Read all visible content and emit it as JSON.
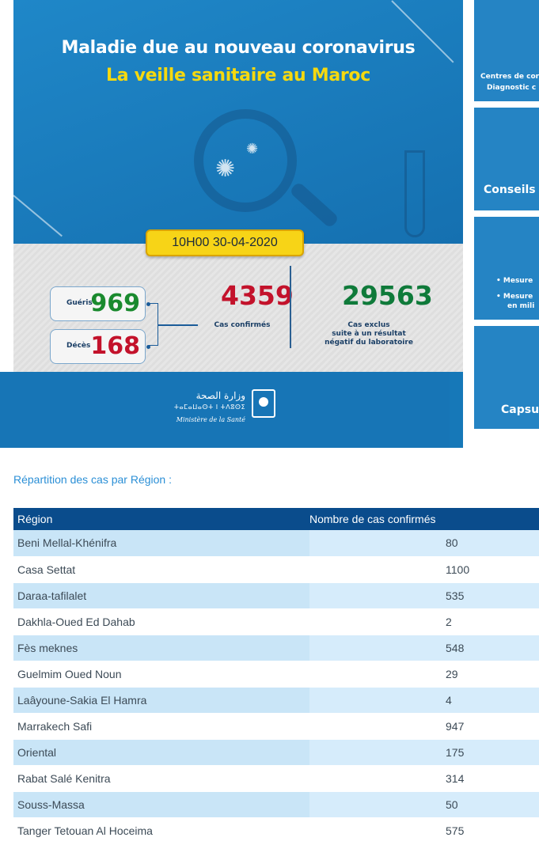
{
  "banner": {
    "title_line1": "Maladie due au nouveau coronavirus",
    "title_line2": "La veille sanitaire au Maroc",
    "datetime": "10H00  30-04-2020",
    "recovered": {
      "label": "Guéris",
      "value": "969"
    },
    "deaths": {
      "label": "Décès",
      "value": "168"
    },
    "confirmed": {
      "value": "4359",
      "label": "Cas confirmés"
    },
    "excluded": {
      "value": "29563",
      "label_line1": "Cas exclus",
      "label_line2": "suite à un résultat",
      "label_line3": "négatif du laboratoire"
    },
    "ministry": {
      "arabic": "وزارة الصحة",
      "tifinagh": "ⵜⴰⵎⴰⵡⴰⵙⵜ ⵏ ⵜⴷⵓⵙⵉ",
      "french": "Ministère de la Santé"
    },
    "colors": {
      "recovered": "#1a8a2e",
      "confirmed": "#c3122b",
      "excluded": "#0f7a3a",
      "accent": "#f7d417"
    }
  },
  "side_cards": [
    {
      "line1": "Centres de cor",
      "line2": "Diagnostic c"
    },
    {
      "line1": "Conseils"
    },
    {
      "line1": "• Mesure",
      "line2": "• Mesure",
      "line3": "en mili"
    },
    {
      "line1": "Capsu"
    }
  ],
  "regions": {
    "title": "Répartition des cas par Région :",
    "header": {
      "region": "Région",
      "count": "Nombre de cas confirmés"
    },
    "rows": [
      {
        "region": "Beni Mellal-Khénifra",
        "count": "80"
      },
      {
        "region": "Casa Settat",
        "count": "1100"
      },
      {
        "region": "Daraa-tafilalet",
        "count": "535"
      },
      {
        "region": "Dakhla-Oued Ed Dahab",
        "count": "2"
      },
      {
        "region": "Fès meknes",
        "count": "548"
      },
      {
        "region": "Guelmim Oued Noun",
        "count": "29"
      },
      {
        "region": "Laâyoune-Sakia El Hamra",
        "count": "4"
      },
      {
        "region": "Marrakech Safi",
        "count": "947"
      },
      {
        "region": "Oriental",
        "count": "175"
      },
      {
        "region": "Rabat Salé Kenitra",
        "count": "314"
      },
      {
        "region": "Souss-Massa",
        "count": "50"
      },
      {
        "region": "Tanger Tetouan Al Hoceima",
        "count": "575"
      }
    ]
  }
}
